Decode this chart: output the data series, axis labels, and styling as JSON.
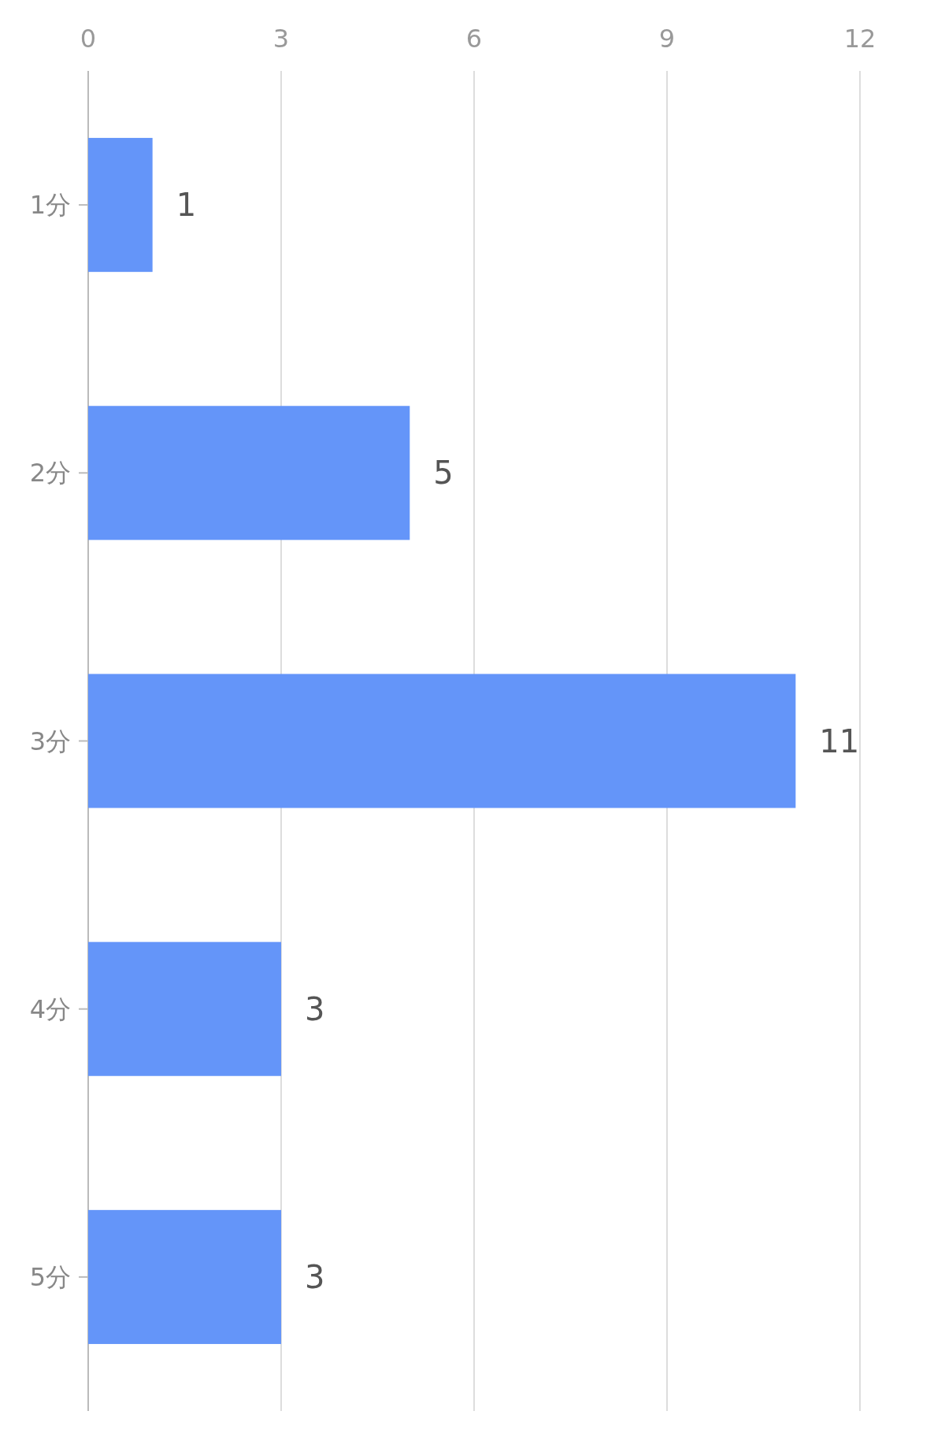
{
  "chart_data": {
    "type": "bar",
    "orientation": "horizontal",
    "categories": [
      "1分",
      "2分",
      "3分",
      "4分",
      "5分"
    ],
    "values": [
      1,
      5,
      11,
      3,
      3
    ],
    "color": "#6495f9",
    "xlim": [
      0,
      12
    ],
    "xticks": [
      0,
      3,
      6,
      9,
      12
    ],
    "grid": "x",
    "data_labels": true
  }
}
